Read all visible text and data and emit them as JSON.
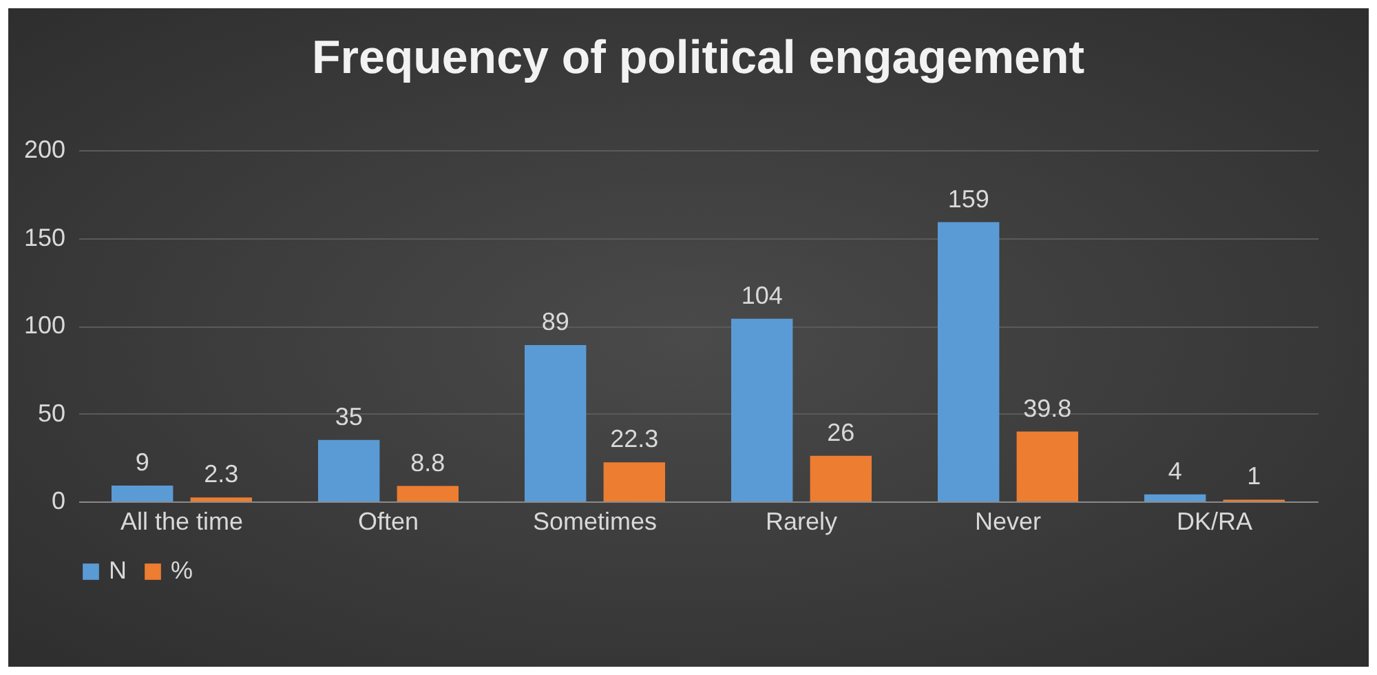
{
  "chart_data": {
    "type": "bar",
    "title": "Frequency of political engagement",
    "categories": [
      "All the time",
      "Often",
      "Sometimes",
      "Rarely",
      "Never",
      "DK/RA"
    ],
    "series": [
      {
        "name": "N",
        "color": "#5b9bd5",
        "values": [
          9,
          35,
          89,
          104,
          159,
          4
        ]
      },
      {
        "name": "%",
        "color": "#ed7d31",
        "values": [
          2.3,
          8.8,
          22.3,
          26,
          39.8,
          1
        ]
      }
    ],
    "ylim": [
      0,
      200
    ],
    "yticks": [
      0,
      50,
      100,
      150,
      200
    ],
    "grid": "y",
    "legend": "bottom",
    "data_labels": true
  }
}
